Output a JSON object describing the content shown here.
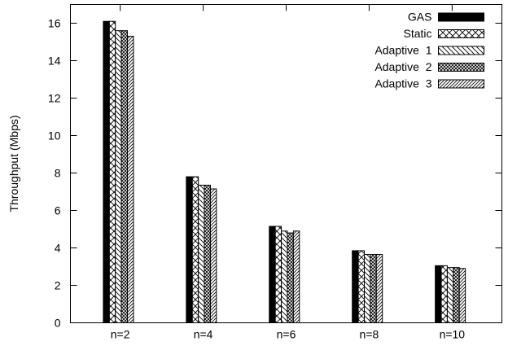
{
  "chart_data": {
    "type": "bar",
    "ylabel": "Throughput (Mbps)",
    "xlabel": "",
    "ylim": [
      0,
      17
    ],
    "yticks": [
      0,
      2,
      4,
      6,
      8,
      10,
      12,
      14,
      16
    ],
    "grid": false,
    "legend_position": "top-right",
    "categories": [
      "n=2",
      "n=4",
      "n=6",
      "n=8",
      "n=10"
    ],
    "series": [
      {
        "name": "GAS",
        "values": [
          16.1,
          7.8,
          5.15,
          3.85,
          3.05
        ],
        "pattern": "solid"
      },
      {
        "name": "Static",
        "values": [
          16.1,
          7.8,
          5.15,
          3.85,
          3.05
        ],
        "pattern": "crosshatch"
      },
      {
        "name": "Adaptive  1",
        "values": [
          15.6,
          7.35,
          4.9,
          3.65,
          2.95
        ],
        "pattern": "diag-down"
      },
      {
        "name": "Adaptive  2",
        "values": [
          15.6,
          7.35,
          4.8,
          3.65,
          2.95
        ],
        "pattern": "dense-cross"
      },
      {
        "name": "Adaptive  3",
        "values": [
          15.3,
          7.15,
          4.9,
          3.65,
          2.9
        ],
        "pattern": "diag-up"
      }
    ]
  }
}
